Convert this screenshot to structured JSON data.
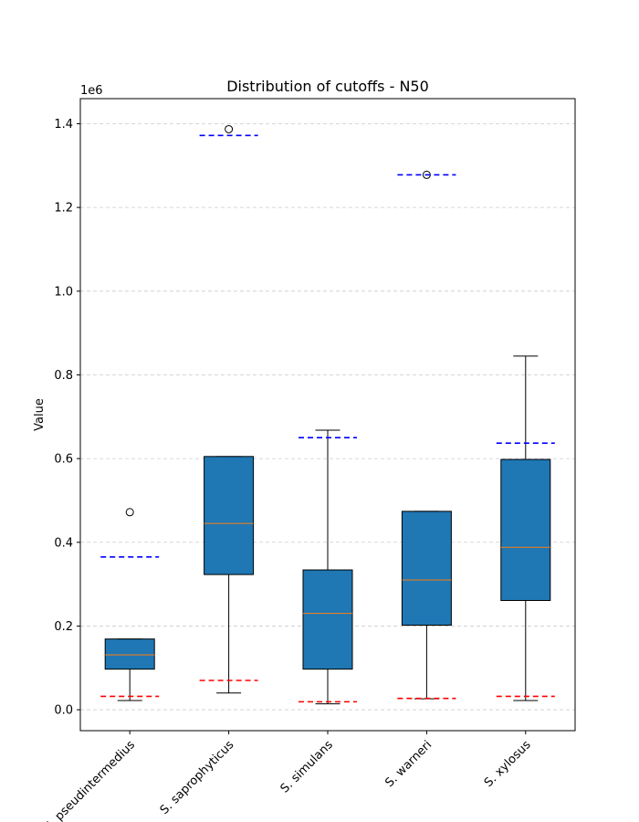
{
  "chart_data": {
    "type": "box",
    "title": "Distribution of cutoffs - N50",
    "xlabel": "",
    "ylabel": "Value",
    "y_offset_text": "1e6",
    "ylim": [
      -0.05,
      1.46
    ],
    "y_ticks": [
      0.0,
      0.2,
      0.4,
      0.6,
      0.8,
      1.0,
      1.2,
      1.4
    ],
    "y_tick_labels": [
      "0.0",
      "0.2",
      "0.4",
      "0.6",
      "0.8",
      "1.0",
      "1.2",
      "1.4"
    ],
    "grid": "y-dashed",
    "box_color": "#1f77b4",
    "median_color": "#ff7f0e",
    "upper_line_color": "#0000ff",
    "lower_line_color": "#ff0000",
    "categories": [
      "S. pseudintermedius",
      "S. saprophyticus",
      "S. simulans",
      "S. warneri",
      "S. xylosus"
    ],
    "boxes": [
      {
        "whisker_low": 0.022,
        "q1": 0.097,
        "median": 0.131,
        "q3": 0.169,
        "whisker_high": 0.169,
        "outliers": [
          0.472
        ],
        "upper_line": 0.365,
        "lower_line": 0.032
      },
      {
        "whisker_low": 0.04,
        "q1": 0.323,
        "median": 0.445,
        "q3": 0.605,
        "whisker_high": 0.605,
        "outliers": [
          1.387
        ],
        "upper_line": 1.372,
        "lower_line": 0.07
      },
      {
        "whisker_low": 0.014,
        "q1": 0.097,
        "median": 0.23,
        "q3": 0.334,
        "whisker_high": 0.668,
        "outliers": [],
        "upper_line": 0.65,
        "lower_line": 0.019
      },
      {
        "whisker_low": 0.026,
        "q1": 0.202,
        "median": 0.31,
        "q3": 0.474,
        "whisker_high": 0.474,
        "outliers": [
          1.278
        ],
        "upper_line": 1.278,
        "lower_line": 0.027
      },
      {
        "whisker_low": 0.022,
        "q1": 0.261,
        "median": 0.388,
        "q3": 0.598,
        "whisker_high": 0.845,
        "outliers": [],
        "upper_line": 0.637,
        "lower_line": 0.032
      }
    ]
  }
}
